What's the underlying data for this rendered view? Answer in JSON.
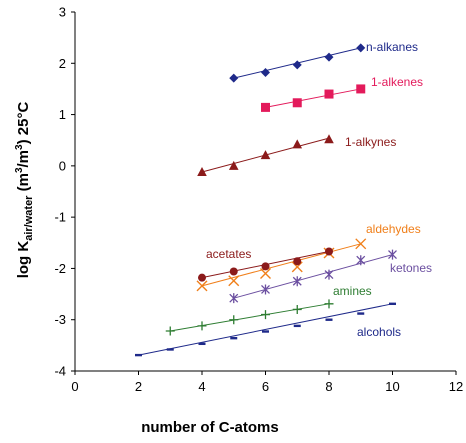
{
  "chart_data": {
    "type": "scatter",
    "title": "",
    "xlabel": "number of C-atoms",
    "ylabel": {
      "prefix": "log K",
      "subscript": "air/water",
      "unit_open": " (m",
      "sup1": "3",
      "slash": "/m",
      "sup2": "3",
      "suffix": ") 25°C"
    },
    "xlim": [
      0,
      12
    ],
    "ylim": [
      -4,
      3
    ],
    "xticks": [
      0,
      2,
      4,
      6,
      8,
      10,
      12
    ],
    "yticks": [
      -4,
      -3,
      -2,
      -1,
      0,
      1,
      2,
      3
    ],
    "grid": false,
    "legend": "inline labels",
    "series": [
      {
        "name": "n-alkanes",
        "color": "#1f2a8a",
        "marker": "diamond",
        "x": [
          5,
          6,
          7,
          8,
          9
        ],
        "y": [
          1.71,
          1.82,
          1.97,
          2.12,
          2.3
        ],
        "fit": [
          [
            5,
            1.71
          ],
          [
            9,
            2.3
          ]
        ]
      },
      {
        "name": "1-alkenes",
        "color": "#e31a5b",
        "marker": "square",
        "x": [
          6,
          7,
          8,
          9
        ],
        "y": [
          1.14,
          1.23,
          1.4,
          1.5
        ],
        "fit": [
          [
            6,
            1.14
          ],
          [
            9,
            1.5
          ]
        ]
      },
      {
        "name": "1-alkynes",
        "color": "#8b1a1a",
        "marker": "triangle",
        "x": [
          4,
          5,
          6,
          7,
          8
        ],
        "y": [
          -0.12,
          0.0,
          0.21,
          0.42,
          0.52
        ],
        "fit": [
          [
            4,
            -0.12
          ],
          [
            8,
            0.54
          ]
        ]
      },
      {
        "name": "aldehydes",
        "color": "#f07f1a",
        "marker": "x",
        "x": [
          4,
          5,
          6,
          7,
          8,
          9
        ],
        "y": [
          -2.34,
          -2.24,
          -2.1,
          -1.97,
          -1.7,
          -1.52
        ],
        "fit": [
          [
            4,
            -2.34
          ],
          [
            9,
            -1.52
          ]
        ]
      },
      {
        "name": "acetates",
        "color": "#8b1a1a",
        "marker": "circle",
        "x": [
          4,
          5,
          6,
          7,
          8
        ],
        "y": [
          -2.18,
          -2.06,
          -1.96,
          -1.86,
          -1.67
        ],
        "fit": [
          [
            4,
            -2.18
          ],
          [
            8,
            -1.67
          ]
        ]
      },
      {
        "name": "ketones",
        "color": "#6b4fa0",
        "marker": "asterisk",
        "x": [
          5,
          6,
          7,
          8,
          9,
          10
        ],
        "y": [
          -2.58,
          -2.41,
          -2.25,
          -2.12,
          -1.84,
          -1.73
        ],
        "fit": [
          [
            5,
            -2.58
          ],
          [
            10,
            -1.73
          ]
        ]
      },
      {
        "name": "amines",
        "color": "#2e7d32",
        "marker": "plus",
        "x": [
          3,
          4,
          5,
          6,
          7,
          8
        ],
        "y": [
          -3.22,
          -3.12,
          -3.0,
          -2.9,
          -2.8,
          -2.69
        ],
        "fit": [
          [
            3,
            -3.22
          ],
          [
            8,
            -2.69
          ]
        ]
      },
      {
        "name": "alcohols",
        "color": "#1f2a8a",
        "marker": "dash",
        "x": [
          2,
          3,
          4,
          5,
          6,
          7,
          8,
          9,
          10
        ],
        "y": [
          -3.69,
          -3.58,
          -3.47,
          -3.36,
          -3.23,
          -3.12,
          -3.0,
          -2.88,
          -2.69
        ],
        "fit": [
          [
            2,
            -3.69
          ],
          [
            10,
            -2.69
          ]
        ]
      }
    ]
  }
}
